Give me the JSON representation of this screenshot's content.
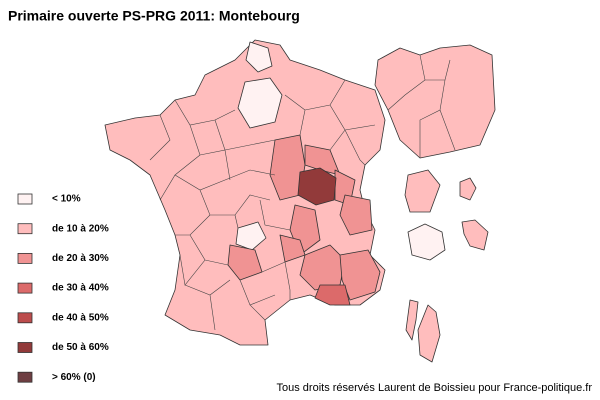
{
  "title": "Primaire ouverte PS-PRG 2011: Montebourg",
  "legend": [
    {
      "label": "< 10%",
      "color": "#fff2f2"
    },
    {
      "label": "de 10 à 20%",
      "color": "#ffbdbd"
    },
    {
      "label": "de 20 à 30%",
      "color": "#f09393"
    },
    {
      "label": "de 30 à 40%",
      "color": "#dc6a6a"
    },
    {
      "label": "de 40 à 50%",
      "color": "#bc4c4c"
    },
    {
      "label": "de 50 à 60%",
      "color": "#923a3a"
    },
    {
      "label": "> 60% (0)",
      "color": "#6e3e42"
    }
  ],
  "credit": "Tous droits réservés Laurent de Boissieu pour France-politique.fr"
}
